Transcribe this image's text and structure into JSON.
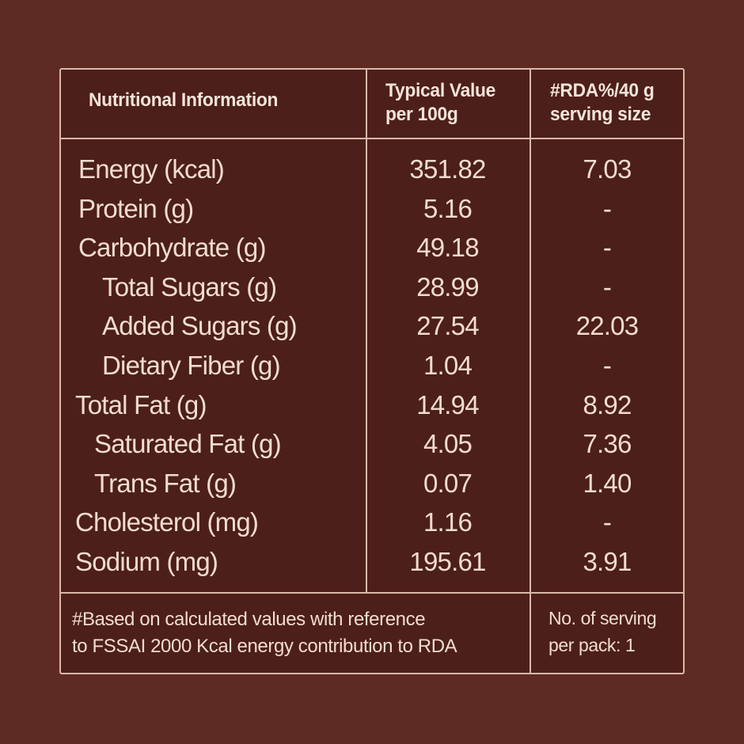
{
  "header": {
    "col1": "Nutritional  Information",
    "col2_line1": "Typical Value",
    "col2_line2": "per 100g",
    "col3_line1": "#RDA%/40 g",
    "col3_line2": "serving size"
  },
  "rows": [
    {
      "name": "Energy (kcal)",
      "value": "351.82",
      "rda": "7.03"
    },
    {
      "name": "Protein (g)",
      "value": "5.16",
      "rda": "-"
    },
    {
      "name": "Carbohydrate (g)",
      "value": "49.18",
      "rda": "-"
    },
    {
      "name": "Total Sugars (g)",
      "value": "28.99",
      "rda": "-"
    },
    {
      "name": "Added Sugars (g)",
      "value": "27.54",
      "rda": "22.03"
    },
    {
      "name": "Dietary Fiber (g)",
      "value": "1.04",
      "rda": "-"
    },
    {
      "name": "Total Fat (g)",
      "value": "14.94",
      "rda": "8.92"
    },
    {
      "name": "Saturated Fat (g)",
      "value": "4.05",
      "rda": "7.36"
    },
    {
      "name": "Trans Fat (g)",
      "value": "0.07",
      "rda": "1.40"
    },
    {
      "name": "Cholesterol (mg)",
      "value": "1.16",
      "rda": "-"
    },
    {
      "name": "Sodium (mg)",
      "value": "195.61",
      "rda": "3.91"
    }
  ],
  "footer": {
    "note_line1": "#Based on calculated values with reference",
    "note_line2": "to FSSAI 2000 Kcal energy contribution to RDA",
    "servings_line1": "No. of serving",
    "servings_line2": "per pack: 1"
  }
}
